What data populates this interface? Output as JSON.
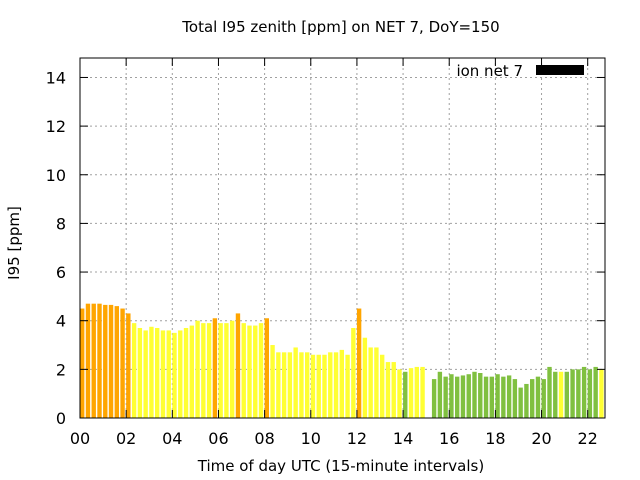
{
  "chart_data": {
    "type": "bar",
    "title": "Total I95 zenith [ppm] on NET 7, DoY=150",
    "xlabel": "Time of day UTC (15-minute intervals)",
    "ylabel": "I95 [ppm]",
    "xlim": [
      0,
      22.75
    ],
    "ylim": [
      0,
      14.8
    ],
    "x_ticks": [
      "00",
      "02",
      "04",
      "06",
      "08",
      "10",
      "12",
      "14",
      "16",
      "18",
      "20",
      "22"
    ],
    "y_ticks": [
      "0",
      "2",
      "4",
      "6",
      "8",
      "10",
      "12",
      "14"
    ],
    "grid": true,
    "legend": {
      "label": "ion net 7",
      "position": "top-right",
      "color": "#000000"
    },
    "bar_width_hours": 0.19,
    "colors": {
      "orange": "#ffa500",
      "yellow": "#ffff33",
      "green": "#80c040"
    },
    "series": [
      {
        "x": [
          0.0,
          0.25,
          0.5,
          0.75,
          1.0,
          1.25,
          1.5,
          1.75,
          2.0,
          2.25,
          2.5,
          2.75,
          3.0,
          3.25,
          3.5,
          3.75,
          4.0,
          4.25,
          4.5,
          4.75,
          5.0,
          5.25,
          5.5,
          5.75,
          6.0,
          6.25,
          6.5,
          6.75,
          7.0,
          7.25,
          7.5,
          7.75,
          8.0,
          8.25,
          8.5,
          8.75,
          9.0,
          9.25,
          9.5,
          9.75,
          10.0,
          10.25,
          10.5,
          10.75,
          11.0,
          11.25,
          11.5,
          11.75,
          12.0,
          12.25,
          12.5,
          12.75,
          13.0,
          13.25,
          13.5,
          13.75,
          14.0,
          14.25,
          14.5,
          14.75,
          15.25,
          15.5,
          15.75,
          16.0,
          16.25,
          16.5,
          16.75,
          17.0,
          17.25,
          17.5,
          17.75,
          18.0,
          18.25,
          18.5,
          18.75,
          19.0,
          19.25,
          19.5,
          19.75,
          20.0,
          20.25,
          20.5,
          20.75,
          21.0,
          21.25,
          21.5,
          21.75,
          22.0,
          22.25,
          22.5
        ],
        "values": [
          4.5,
          4.7,
          4.7,
          4.7,
          4.65,
          4.65,
          4.6,
          4.5,
          4.3,
          3.9,
          3.7,
          3.6,
          3.75,
          3.7,
          3.6,
          3.6,
          3.5,
          3.6,
          3.7,
          3.8,
          4.0,
          3.9,
          3.9,
          4.1,
          3.9,
          3.9,
          4.0,
          4.3,
          3.9,
          3.8,
          3.8,
          3.9,
          4.1,
          3.0,
          2.7,
          2.7,
          2.7,
          2.9,
          2.7,
          2.7,
          2.6,
          2.6,
          2.6,
          2.7,
          2.7,
          2.8,
          2.6,
          3.7,
          4.5,
          3.3,
          2.9,
          2.9,
          2.6,
          2.3,
          2.3,
          2.0,
          1.9,
          2.05,
          2.1,
          2.1,
          1.6,
          1.9,
          1.7,
          1.8,
          1.7,
          1.75,
          1.8,
          1.9,
          1.85,
          1.7,
          1.7,
          1.8,
          1.7,
          1.75,
          1.6,
          1.25,
          1.4,
          1.6,
          1.7,
          1.6,
          2.1,
          1.9,
          1.9,
          1.9,
          2.0,
          2.0,
          2.1,
          2.0,
          2.1,
          2.0
        ],
        "colors": [
          "orange",
          "orange",
          "orange",
          "orange",
          "orange",
          "orange",
          "orange",
          "orange",
          "orange",
          "yellow",
          "yellow",
          "yellow",
          "yellow",
          "yellow",
          "yellow",
          "yellow",
          "yellow",
          "yellow",
          "yellow",
          "yellow",
          "yellow",
          "yellow",
          "yellow",
          "orange",
          "yellow",
          "yellow",
          "yellow",
          "orange",
          "yellow",
          "yellow",
          "yellow",
          "yellow",
          "orange",
          "yellow",
          "yellow",
          "yellow",
          "yellow",
          "yellow",
          "yellow",
          "yellow",
          "yellow",
          "yellow",
          "yellow",
          "yellow",
          "yellow",
          "yellow",
          "yellow",
          "yellow",
          "orange",
          "yellow",
          "yellow",
          "yellow",
          "yellow",
          "yellow",
          "yellow",
          "yellow",
          "green",
          "yellow",
          "yellow",
          "yellow",
          "green",
          "green",
          "green",
          "green",
          "green",
          "green",
          "green",
          "green",
          "green",
          "green",
          "green",
          "green",
          "green",
          "green",
          "green",
          "green",
          "green",
          "green",
          "green",
          "green",
          "green",
          "green",
          "yellow",
          "green",
          "green",
          "green",
          "green",
          "green",
          "green",
          "yellow"
        ]
      }
    ]
  }
}
